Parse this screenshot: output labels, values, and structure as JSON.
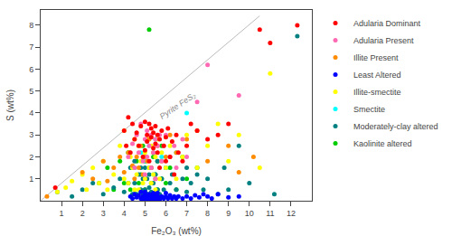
{
  "chart_data": {
    "type": "scatter",
    "xlabel": "Fe₂O₃ (wt%)",
    "ylabel": "S (wt%)",
    "xlim": [
      0,
      13
    ],
    "ylim": [
      0,
      8.7
    ],
    "xticks": [
      1,
      2,
      3,
      4,
      5,
      6,
      7,
      8,
      9,
      10,
      11,
      12
    ],
    "yticks": [
      1,
      2,
      3,
      4,
      5,
      6,
      7,
      8
    ],
    "grid": false,
    "legend": "right",
    "marker": "circle",
    "annotations": [
      {
        "text": "Pyrite FeS₂",
        "x": 5.5,
        "y": 3.5
      }
    ],
    "series": [
      {
        "name": "Adularia Dominant",
        "color": "#FF0000",
        "x": [
          0.7,
          4.0,
          4.1,
          4.2,
          4.3,
          4.4,
          4.5,
          4.6,
          4.7,
          4.8,
          4.9,
          5.0,
          5.0,
          5.1,
          5.1,
          5.2,
          5.2,
          5.3,
          5.3,
          5.4,
          5.4,
          5.5,
          5.5,
          5.6,
          5.6,
          5.7,
          5.7,
          5.8,
          5.9,
          6.0,
          6.0,
          6.1,
          6.2,
          6.3,
          6.4,
          6.5,
          6.6,
          6.8,
          7.0,
          7.2,
          7.5,
          8.0,
          8.5,
          9.0,
          10.5,
          11.0,
          12.3
        ],
        "values": [
          0.6,
          3.2,
          2.5,
          3.8,
          2.2,
          3.5,
          2.8,
          3.1,
          2.5,
          3.4,
          2.0,
          3.6,
          2.3,
          3.0,
          2.7,
          3.5,
          1.8,
          2.9,
          3.3,
          2.4,
          3.1,
          2.6,
          3.4,
          2.2,
          3.0,
          2.8,
          1.5,
          3.2,
          2.5,
          2.9,
          1.8,
          3.3,
          2.0,
          2.7,
          1.2,
          3.0,
          2.2,
          1.8,
          2.5,
          3.5,
          3.2,
          2.8,
          3.0,
          3.5,
          7.8,
          7.2,
          8.0
        ]
      },
      {
        "name": "Adularia Present",
        "color": "#FF69B4",
        "x": [
          4.2,
          4.4,
          4.5,
          4.6,
          4.7,
          4.8,
          4.9,
          5.0,
          5.0,
          5.1,
          5.1,
          5.2,
          5.3,
          5.3,
          5.4,
          5.5,
          5.5,
          5.6,
          5.7,
          5.8,
          5.9,
          6.0,
          6.2,
          6.4,
          6.5,
          6.8,
          7.0,
          7.5,
          8.0,
          9.5
        ],
        "values": [
          2.0,
          2.6,
          1.5,
          3.0,
          2.2,
          3.5,
          1.8,
          2.8,
          1.2,
          3.2,
          2.0,
          2.5,
          3.0,
          1.5,
          2.2,
          2.8,
          1.0,
          2.5,
          3.0,
          1.8,
          2.5,
          3.0,
          2.0,
          2.5,
          1.5,
          2.8,
          2.0,
          4.5,
          6.2,
          4.8
        ]
      },
      {
        "name": "Illite Present",
        "color": "#FF8C00",
        "x": [
          0.3,
          2.0,
          2.5,
          3.0,
          3.2,
          3.5,
          3.8,
          4.0,
          4.2,
          4.4,
          4.5,
          4.6,
          4.7,
          4.8,
          4.9,
          5.0,
          5.1,
          5.2,
          5.3,
          5.4,
          5.5,
          5.6,
          5.8,
          6.0,
          6.2,
          6.5,
          7.0,
          7.5,
          8.0,
          9.0,
          9.5,
          10.2
        ],
        "values": [
          0.2,
          1.3,
          1.0,
          1.8,
          0.9,
          1.5,
          2.0,
          1.3,
          2.2,
          1.6,
          1.0,
          2.0,
          1.5,
          2.5,
          1.2,
          2.0,
          1.8,
          2.8,
          1.5,
          2.2,
          1.0,
          2.5,
          1.8,
          2.0,
          3.0,
          2.2,
          2.8,
          3.2,
          1.8,
          2.5,
          1.3,
          2.0
        ]
      },
      {
        "name": "Least Altered",
        "color": "#0000FF",
        "x": [
          4.3,
          4.4,
          4.5,
          4.6,
          4.7,
          4.8,
          4.8,
          4.9,
          4.9,
          5.0,
          5.0,
          5.0,
          5.1,
          5.1,
          5.2,
          5.2,
          5.2,
          5.3,
          5.3,
          5.4,
          5.4,
          5.5,
          5.5,
          5.6,
          5.6,
          5.7,
          5.7,
          5.8,
          5.9,
          6.0,
          6.0,
          6.1,
          6.2,
          6.3,
          6.4,
          6.5,
          6.6,
          6.8,
          7.0,
          7.2,
          7.4,
          7.6,
          7.8,
          8.0,
          8.2,
          8.5,
          9.0,
          9.5,
          5.3,
          5.4,
          5.5,
          5.6,
          5.0
        ],
        "values": [
          0.2,
          0.1,
          0.3,
          0.15,
          0.25,
          0.1,
          0.4,
          0.2,
          0.05,
          0.3,
          0.1,
          0.05,
          0.2,
          0.08,
          0.3,
          0.1,
          0.05,
          0.2,
          0.1,
          0.25,
          0.05,
          0.15,
          0.3,
          0.1,
          0.2,
          0.15,
          0.05,
          0.2,
          0.1,
          0.2,
          0.35,
          0.1,
          0.25,
          0.1,
          0.2,
          0.1,
          0.2,
          0.1,
          0.2,
          0.1,
          0.25,
          0.15,
          0.3,
          0.2,
          0.1,
          0.3,
          0.15,
          0.2,
          0.25,
          0.35,
          0.08,
          0.35,
          0.4
        ]
      },
      {
        "name": "Illite-smectite",
        "color": "#FFFF00",
        "x": [
          0.8,
          1.2,
          1.5,
          2.0,
          2.2,
          2.5,
          2.8,
          3.0,
          3.2,
          3.5,
          3.8,
          4.0,
          4.0,
          4.2,
          4.3,
          4.4,
          4.5,
          4.5,
          4.6,
          4.7,
          4.7,
          4.8,
          4.9,
          5.0,
          5.0,
          5.1,
          5.2,
          5.3,
          5.3,
          5.4,
          5.5,
          5.5,
          5.6,
          5.7,
          5.8,
          6.0,
          6.2,
          6.5,
          6.8,
          7.0,
          7.5,
          8.0,
          8.5,
          9.0,
          9.5,
          10.5,
          11.0
        ],
        "values": [
          0.4,
          0.6,
          0.9,
          1.2,
          0.5,
          1.5,
          0.8,
          1.8,
          0.5,
          1.2,
          2.5,
          1.0,
          3.2,
          0.8,
          2.0,
          1.5,
          0.5,
          2.8,
          1.2,
          2.5,
          0.5,
          1.8,
          0.8,
          2.2,
          1.0,
          2.8,
          1.5,
          0.8,
          2.5,
          1.2,
          2.0,
          0.5,
          2.8,
          1.0,
          2.2,
          1.5,
          2.5,
          1.0,
          2.0,
          3.0,
          1.5,
          2.5,
          3.5,
          1.8,
          3.0,
          1.5,
          5.8
        ]
      },
      {
        "name": "Smectite",
        "color": "#00FFFF",
        "x": [
          4.5,
          4.8,
          5.0,
          5.2,
          5.4,
          5.5,
          5.8,
          6.0,
          6.5,
          7.0
        ],
        "values": [
          1.5,
          2.2,
          1.8,
          2.5,
          1.2,
          2.8,
          2.0,
          1.5,
          2.2,
          4.0
        ]
      },
      {
        "name": "Moderately-clay altered",
        "color": "#008080",
        "x": [
          0.8,
          1.5,
          2.0,
          2.5,
          3.0,
          3.5,
          3.8,
          4.0,
          4.2,
          4.3,
          4.4,
          4.5,
          4.5,
          4.6,
          4.7,
          4.8,
          4.8,
          4.9,
          4.9,
          5.0,
          5.0,
          5.1,
          5.1,
          5.2,
          5.2,
          5.3,
          5.3,
          5.4,
          5.5,
          5.5,
          5.6,
          5.6,
          5.7,
          5.8,
          5.9,
          6.0,
          6.2,
          6.3,
          6.5,
          6.8,
          7.0,
          7.0,
          7.2,
          7.5,
          7.8,
          8.0,
          8.5,
          8.8,
          9.0,
          9.5,
          10.0,
          11.2,
          12.3
        ],
        "values": [
          0.4,
          0.2,
          0.5,
          0.8,
          0.3,
          0.6,
          1.0,
          0.4,
          0.8,
          1.5,
          0.3,
          0.8,
          1.8,
          0.3,
          1.2,
          0.5,
          1.5,
          0.3,
          1.0,
          0.5,
          1.5,
          0.3,
          1.0,
          0.6,
          1.2,
          0.4,
          1.5,
          0.8,
          0.3,
          1.2,
          0.5,
          1.8,
          0.3,
          1.0,
          0.5,
          1.5,
          0.8,
          1.2,
          0.5,
          1.0,
          0.4,
          1.5,
          0.8,
          1.2,
          0.5,
          1.0,
          0.3,
          1.5,
          0.5,
          2.5,
          0.8,
          0.3,
          7.5
        ]
      },
      {
        "name": "Kaolinite altered",
        "color": "#00CC00",
        "x": [
          2.8,
          3.2,
          3.5,
          3.8,
          4.0,
          4.2,
          4.3,
          4.4,
          4.5,
          4.6,
          4.7,
          4.8,
          4.9,
          5.0,
          5.0,
          5.1,
          5.2,
          5.3,
          5.4,
          5.4,
          5.5,
          5.6,
          5.6,
          5.8,
          5.8,
          6.0,
          6.2,
          6.5,
          6.8,
          7.0,
          7.5,
          5.2
        ],
        "values": [
          0.8,
          1.5,
          0.5,
          1.8,
          0.8,
          2.2,
          0.5,
          1.5,
          0.3,
          1.8,
          0.8,
          1.2,
          2.5,
          0.5,
          1.8,
          0.3,
          1.5,
          0.8,
          2.0,
          0.3,
          1.2,
          0.5,
          1.8,
          1.0,
          2.5,
          0.8,
          1.5,
          0.5,
          2.0,
          1.0,
          1.5,
          7.8
        ]
      },
      {
        "type": "line",
        "color": "#BBBBBB",
        "x": [
          0,
          10.5
        ],
        "values": [
          0,
          8.4315
        ]
      }
    ]
  }
}
